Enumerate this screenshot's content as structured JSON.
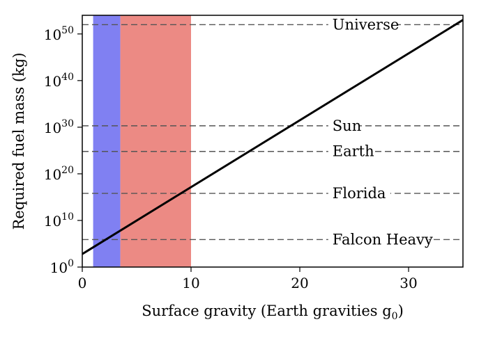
{
  "chart_data": {
    "type": "line",
    "xlabel": "Surface gravity (Earth gravities g",
    "xlabel_sub": "0",
    "xlabel_close": ")",
    "ylabel": "Required fuel mass (kg)",
    "xlim": [
      0,
      35
    ],
    "ylim_log10": [
      0,
      54
    ],
    "y_scale": "log",
    "grid": false,
    "x_ticks": [
      {
        "value": 0,
        "label": "0"
      },
      {
        "value": 10,
        "label": "10"
      },
      {
        "value": 20,
        "label": "20"
      },
      {
        "value": 30,
        "label": "30"
      }
    ],
    "y_ticks": [
      {
        "exp": 0,
        "base": "10",
        "sup": "0"
      },
      {
        "exp": 10,
        "base": "10",
        "sup": "10"
      },
      {
        "exp": 20,
        "base": "10",
        "sup": "20"
      },
      {
        "exp": 30,
        "base": "10",
        "sup": "30"
      },
      {
        "exp": 40,
        "base": "10",
        "sup": "40"
      },
      {
        "exp": 50,
        "base": "10",
        "sup": "50"
      }
    ],
    "bands": [
      {
        "x_start": 1.0,
        "x_end": 3.5,
        "color": "#8080f2"
      },
      {
        "x_start": 3.5,
        "x_end": 10.0,
        "color": "#ec8a84"
      }
    ],
    "series": [
      {
        "color": "#000000",
        "x": [
          0,
          35
        ],
        "log10_y": [
          2.8,
          53.0
        ]
      }
    ],
    "reference_lines": [
      {
        "label": "Universe",
        "log10_y": 52.0
      },
      {
        "label": "Sun",
        "log10_y": 30.3
      },
      {
        "label": "Earth",
        "log10_y": 24.8
      },
      {
        "label": "Florida",
        "log10_y": 15.8
      },
      {
        "label": "Falcon Heavy",
        "log10_y": 5.9
      }
    ],
    "reference_label_x": 23
  }
}
